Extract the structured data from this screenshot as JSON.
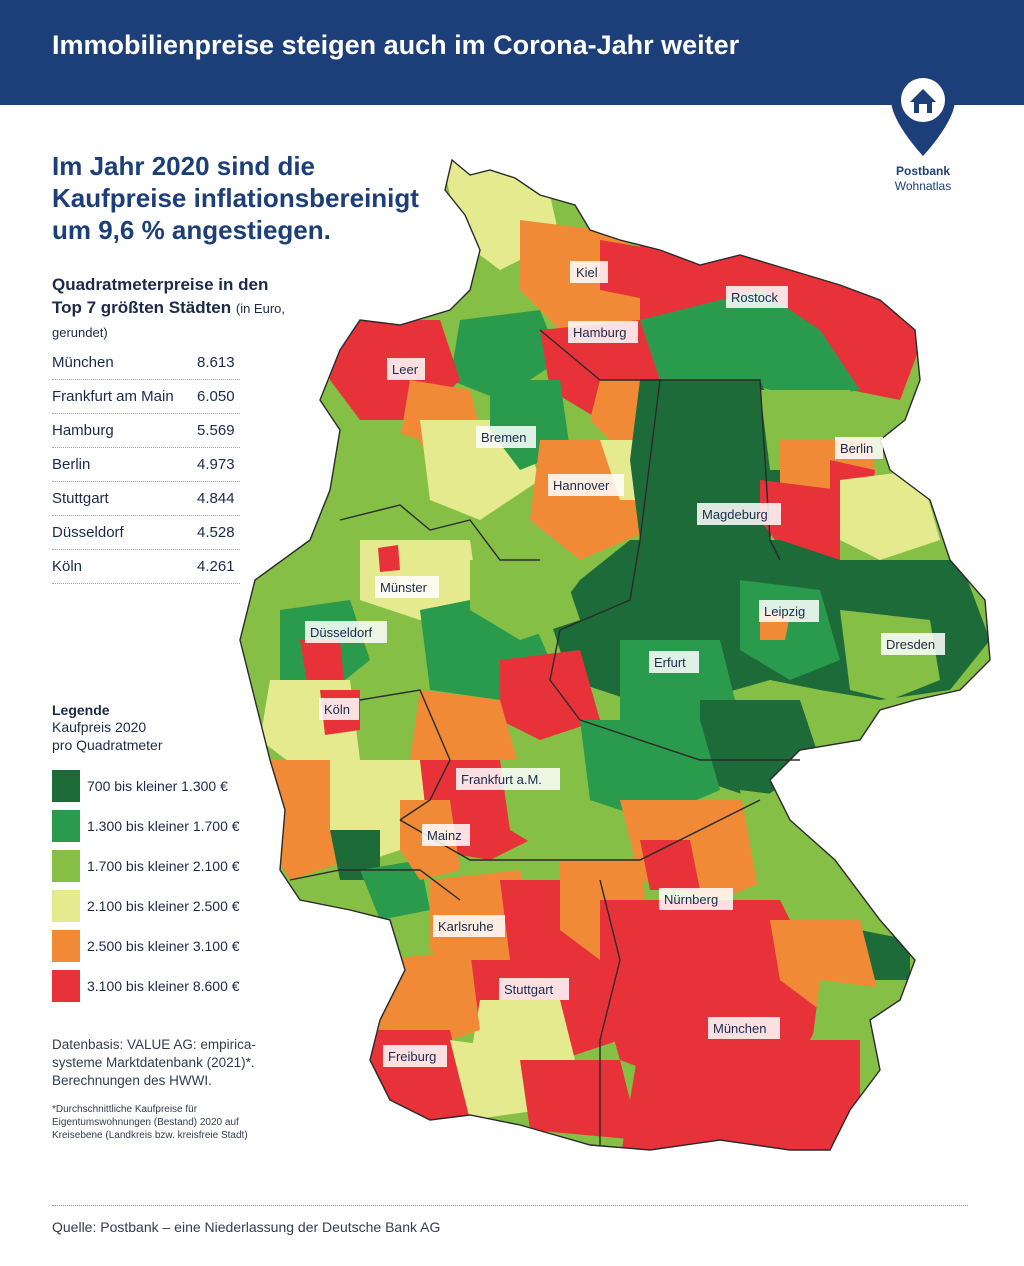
{
  "header": {
    "title": "Immobilienpreise steigen auch im Corona-Jahr weiter"
  },
  "logo": {
    "brand": "Postbank",
    "sub": "Wohnatlas",
    "icon": "house-pin-icon"
  },
  "headline": "Im Jahr 2020 sind die Kaufpreise inflationsbereinigt um 9,6 % angestiegen.",
  "cities": {
    "heading": "Quadratmeterpreise in den Top 7 größten Städten",
    "note": "(in Euro, gerundet)",
    "rows": [
      {
        "name": "München",
        "price": "8.613"
      },
      {
        "name": "Frankfurt am Main",
        "price": "6.050"
      },
      {
        "name": "Hamburg",
        "price": "5.569"
      },
      {
        "name": "Berlin",
        "price": "4.973"
      },
      {
        "name": "Stuttgart",
        "price": "4.844"
      },
      {
        "name": "Düsseldorf",
        "price": "4.528"
      },
      {
        "name": "Köln",
        "price": "4.261"
      }
    ]
  },
  "legend": {
    "title": "Legende",
    "subtitle_line1": "Kaufpreis 2020",
    "subtitle_line2": "pro Quadratmeter",
    "items": [
      {
        "label": "700 bis kleiner 1.300 €",
        "color": "#1e6b3a"
      },
      {
        "label": "1.300 bis kleiner 1.700 €",
        "color": "#2a9a4c"
      },
      {
        "label": "1.700 bis kleiner 2.100 €",
        "color": "#86bf45"
      },
      {
        "label": "2.100 bis kleiner 2.500 €",
        "color": "#e5ea8e"
      },
      {
        "label": "2.500 bis kleiner 3.100 €",
        "color": "#f08a36"
      },
      {
        "label": "3.100 bis kleiner 8.600 €",
        "color": "#e8323a"
      }
    ]
  },
  "source_block": "Datenbasis: VALUE AG: empirica-systeme Marktdatenbank (2021)*. Berechnungen des HWWI.",
  "footnote": "*Durchschnittliche Kaufpreise für Eigentumswohnungen (Bestand) 2020 auf Kreisebene (Landkreis bzw. kreisfreie Stadt)",
  "footer": {
    "source": "Quelle: Postbank – eine Niederlassung der Deutsche Bank AG"
  },
  "map": {
    "city_labels": [
      "Kiel",
      "Rostock",
      "Hamburg",
      "Leer",
      "Bremen",
      "Berlin",
      "Hannover",
      "Magdeburg",
      "Münster",
      "Düsseldorf",
      "Leipzig",
      "Dresden",
      "Erfurt",
      "Köln",
      "Frankfurt a.M.",
      "Mainz",
      "Nürnberg",
      "Karlsruhe",
      "Stuttgart",
      "München",
      "Freiburg"
    ]
  }
}
